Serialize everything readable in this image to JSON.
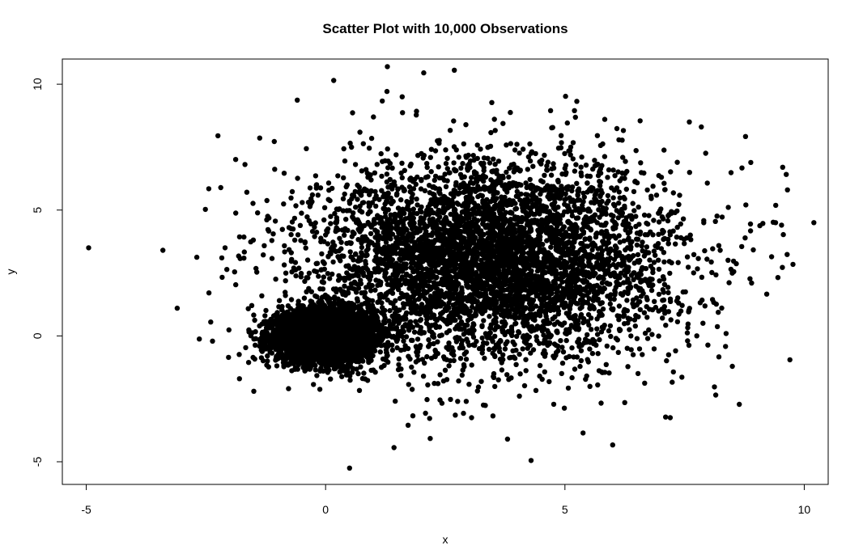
{
  "chart_data": {
    "type": "scatter",
    "title": "Scatter Plot with 10,000 Observations",
    "xlabel": "x",
    "ylabel": "y",
    "xlim": [
      -5.5,
      10.5
    ],
    "ylim": [
      -5.9,
      11.0
    ],
    "xticks": [
      -5,
      0,
      5,
      10
    ],
    "yticks": [
      -5,
      0,
      5,
      10
    ],
    "grid": false,
    "legend": "none",
    "point_color": "#000000",
    "n_observations": 10000,
    "clusters": [
      {
        "center": [
          0,
          0
        ],
        "sd": [
          0.5,
          0.5
        ],
        "n": 5000
      },
      {
        "center": [
          3.5,
          3
        ],
        "sd": [
          1.9,
          2.0
        ],
        "n": 5000
      }
    ],
    "outliers": [
      {
        "x": -4.95,
        "y": 3.5
      },
      {
        "x": 0.17,
        "y": 10.15
      },
      {
        "x": 2.05,
        "y": 10.45
      },
      {
        "x": 0.5,
        "y": -5.25
      },
      {
        "x": 10.2,
        "y": 4.5
      },
      {
        "x": 9.7,
        "y": -0.95
      },
      {
        "x": -2.25,
        "y": 7.95
      },
      {
        "x": 3.8,
        "y": -4.1
      },
      {
        "x": 7.2,
        "y": -3.25
      },
      {
        "x": 9.55,
        "y": 6.7
      },
      {
        "x": 8.9,
        "y": 2.1
      },
      {
        "x": -3.4,
        "y": 3.4
      },
      {
        "x": -3.1,
        "y": 1.1
      },
      {
        "x": -1.5,
        "y": -2.2
      },
      {
        "x": 1.6,
        "y": 9.5
      },
      {
        "x": 7.6,
        "y": 8.5
      },
      {
        "x": 8.15,
        "y": -2.35
      },
      {
        "x": -2.4,
        "y": 0.55
      },
      {
        "x": 9.4,
        "y": 4.5
      },
      {
        "x": 9.65,
        "y": 5.8
      },
      {
        "x": 6.25,
        "y": -2.65
      },
      {
        "x": 3.05,
        "y": -3.25
      },
      {
        "x": -1.8,
        "y": -1.7
      },
      {
        "x": 1.0,
        "y": 8.7
      },
      {
        "x": 5.2,
        "y": 8.95
      },
      {
        "x": 4.7,
        "y": 8.95
      },
      {
        "x": 7.85,
        "y": 8.3
      },
      {
        "x": -2.1,
        "y": 3.5
      }
    ]
  }
}
